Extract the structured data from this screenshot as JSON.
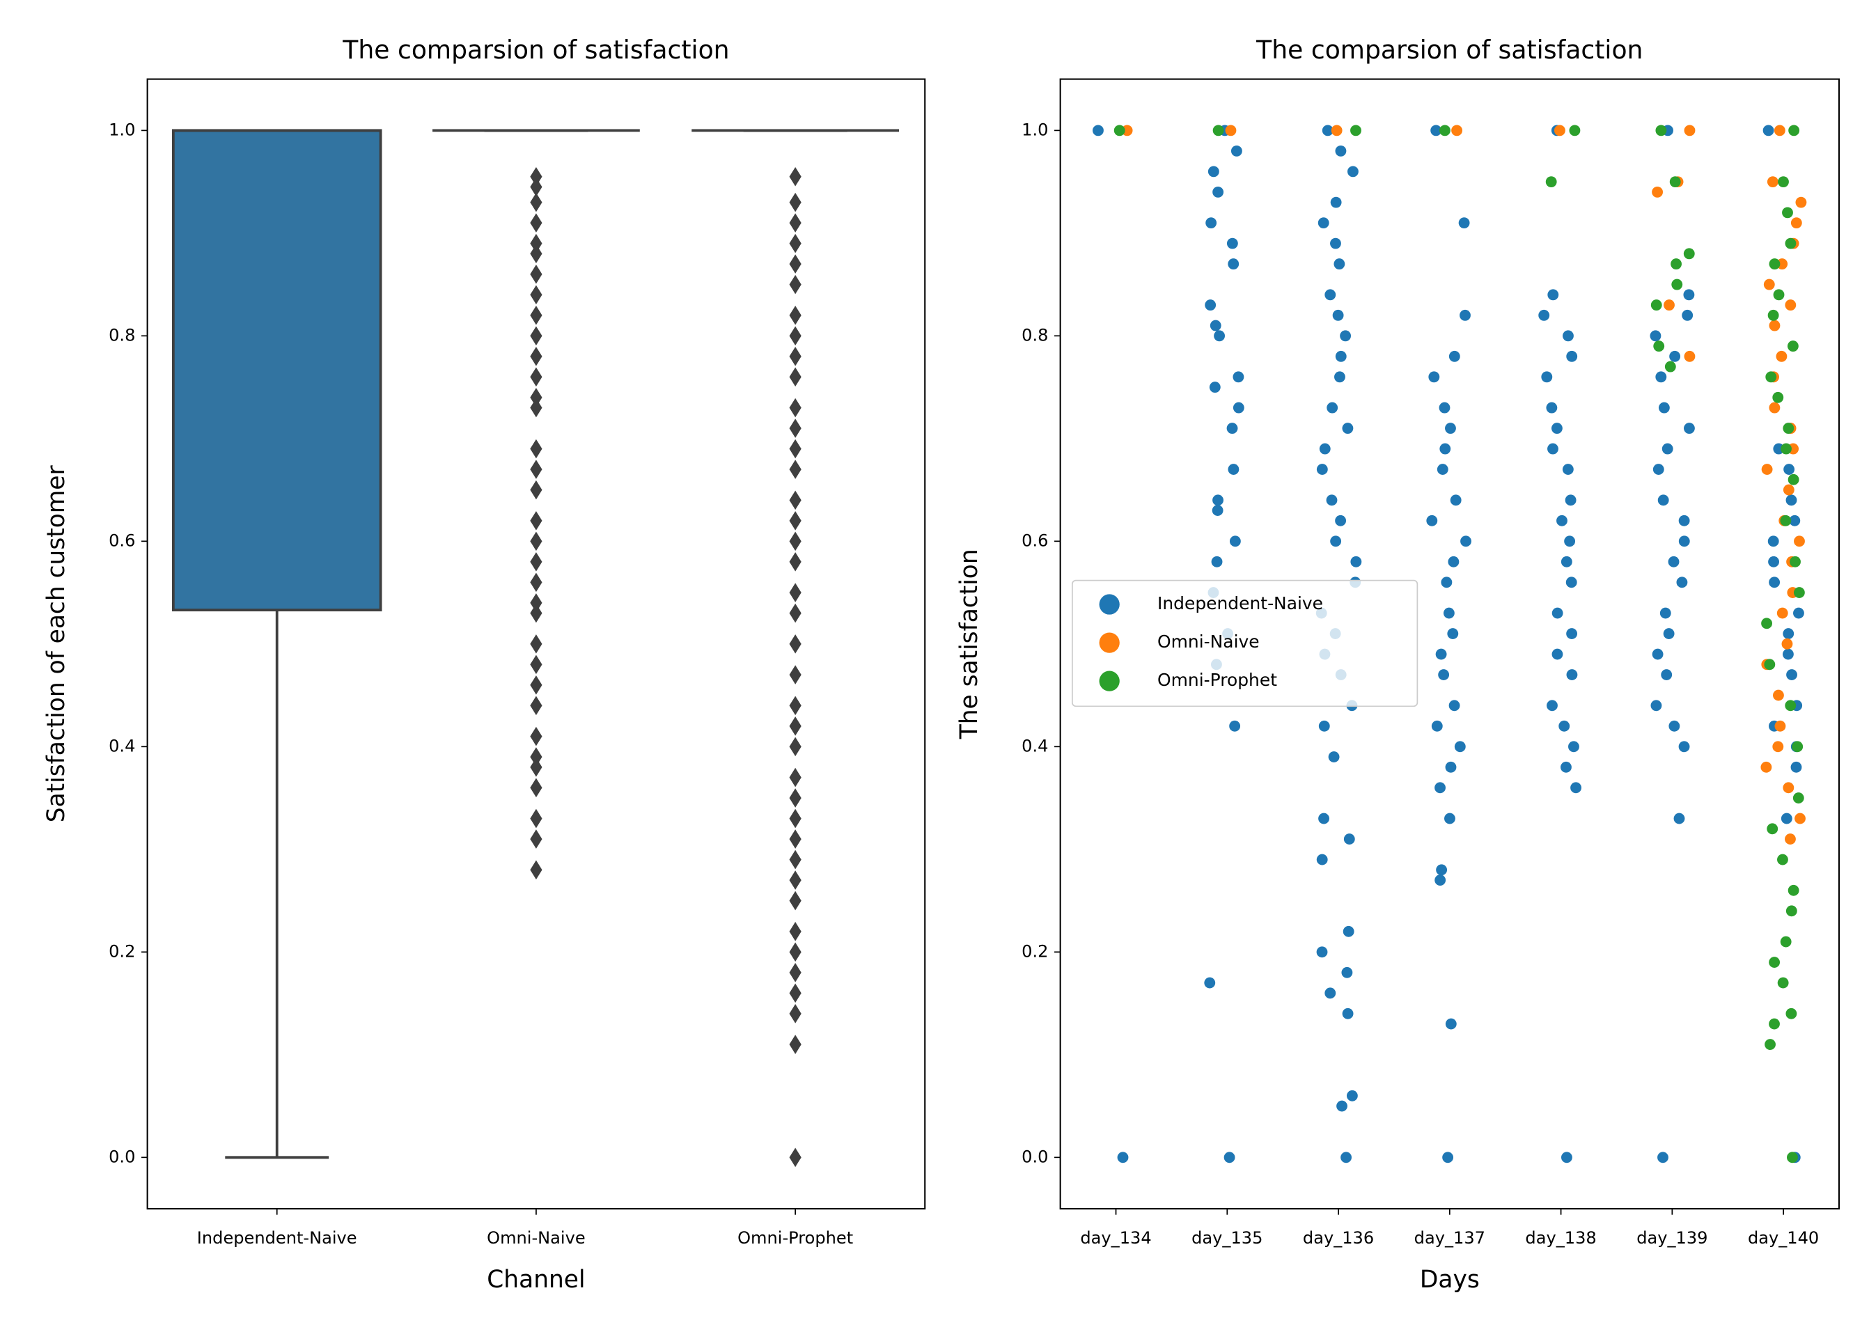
{
  "chart_data": [
    {
      "type": "box",
      "title": "The comparsion of satisfaction",
      "xlabel": "Channel",
      "ylabel": "Satisfaction of each customer",
      "categories": [
        "Independent-Naive",
        "Omni-Naive",
        "Omni-Prophet"
      ],
      "ylim": [
        -0.05,
        1.05
      ],
      "yticks": [
        {
          "value": 0,
          "label": "0.0"
        },
        0.2,
        0.4,
        0.6,
        0.8,
        {
          "value": 1,
          "label": "1.0"
        }
      ],
      "boxes": [
        {
          "color": "#3274a1",
          "whislo": 0,
          "q1": 0.533,
          "med": 1,
          "q3": 1,
          "whishi": 1,
          "fliers": []
        },
        {
          "color": "#e1812c",
          "whislo": 1,
          "q1": 1,
          "med": 1,
          "q3": 1,
          "whishi": 1,
          "fliers": [
            0.955,
            0.945,
            0.93,
            0.91,
            0.89,
            0.88,
            0.86,
            0.84,
            0.82,
            0.8,
            0.78,
            0.76,
            0.74,
            0.73,
            0.69,
            0.67,
            0.65,
            0.62,
            0.6,
            0.58,
            0.56,
            0.54,
            0.53,
            0.5,
            0.48,
            0.46,
            0.44,
            0.41,
            0.39,
            0.38,
            0.36,
            0.33,
            0.31,
            0.28
          ]
        },
        {
          "color": "#3a923a",
          "whislo": 1,
          "q1": 1,
          "med": 1,
          "q3": 1,
          "whishi": 1,
          "fliers": [
            0.955,
            0.93,
            0.91,
            0.89,
            0.87,
            0.85,
            0.82,
            0.8,
            0.78,
            0.76,
            0.73,
            0.71,
            0.69,
            0.67,
            0.64,
            0.62,
            0.6,
            0.58,
            0.55,
            0.53,
            0.5,
            0.47,
            0.44,
            0.42,
            0.4,
            0.37,
            0.35,
            0.33,
            0.31,
            0.29,
            0.27,
            0.25,
            0.22,
            0.2,
            0.18,
            0.16,
            0.14,
            0.11,
            0
          ]
        }
      ]
    },
    {
      "type": "strip",
      "title": "The comparsion of satisfaction",
      "xlabel": "Days",
      "ylabel": "The satisfaction",
      "categories": [
        "day_134",
        "day_135",
        "day_136",
        "day_137",
        "day_138",
        "day_139",
        "day_140"
      ],
      "ylim": [
        -0.05,
        1.05
      ],
      "yticks": [
        {
          "value": 0,
          "label": "0.0"
        },
        0.2,
        0.4,
        0.6,
        0.8,
        {
          "value": 1,
          "label": "1.0"
        }
      ],
      "legend": "center left",
      "series": [
        {
          "name": "Independent-Naive",
          "color": "#1f77b4",
          "values": [
            [
              1,
              0
            ],
            [
              1,
              0.98,
              0.96,
              0.94,
              0.91,
              0.89,
              0.87,
              0.83,
              0.81,
              0.8,
              0.76,
              0.75,
              0.73,
              0.71,
              0.67,
              0.64,
              0.63,
              0.6,
              0.58,
              0.55,
              0.51,
              0.48,
              0.42,
              0.17,
              0
            ],
            [
              1,
              0.98,
              0.96,
              0.93,
              0.91,
              0.89,
              0.87,
              0.84,
              0.82,
              0.8,
              0.78,
              0.76,
              0.73,
              0.71,
              0.69,
              0.67,
              0.64,
              0.62,
              0.6,
              0.58,
              0.56,
              0.53,
              0.51,
              0.49,
              0.47,
              0.44,
              0.42,
              0.39,
              0.33,
              0.31,
              0.29,
              0.22,
              0.2,
              0.18,
              0.16,
              0.14,
              0.06,
              0.05,
              0
            ],
            [
              1,
              0.91,
              0.82,
              0.78,
              0.76,
              0.73,
              0.71,
              0.69,
              0.67,
              0.64,
              0.62,
              0.6,
              0.58,
              0.56,
              0.53,
              0.51,
              0.49,
              0.47,
              0.44,
              0.42,
              0.4,
              0.38,
              0.36,
              0.33,
              0.28,
              0.27,
              0.13,
              0
            ],
            [
              1,
              0.84,
              0.82,
              0.8,
              0.78,
              0.76,
              0.73,
              0.71,
              0.69,
              0.67,
              0.64,
              0.62,
              0.6,
              0.58,
              0.56,
              0.53,
              0.51,
              0.49,
              0.47,
              0.44,
              0.42,
              0.4,
              0.38,
              0.36,
              0
            ],
            [
              1,
              0.84,
              0.82,
              0.8,
              0.78,
              0.76,
              0.73,
              0.71,
              0.69,
              0.67,
              0.64,
              0.62,
              0.6,
              0.58,
              0.56,
              0.53,
              0.51,
              0.49,
              0.47,
              0.44,
              0.42,
              0.4,
              0.33,
              0
            ],
            [
              1,
              0.69,
              0.67,
              0.64,
              0.62,
              0.6,
              0.58,
              0.56,
              0.53,
              0.51,
              0.49,
              0.47,
              0.44,
              0.42,
              0.4,
              0.38,
              0.33,
              0
            ]
          ]
        },
        {
          "name": "Omni-Naive",
          "color": "#ff7f0e",
          "values": [
            [
              1
            ],
            [
              1
            ],
            [
              1
            ],
            [
              1
            ],
            [
              1
            ],
            [
              1,
              0.95,
              0.94,
              0.83,
              0.78
            ],
            [
              1,
              0.95,
              0.93,
              0.91,
              0.89,
              0.87,
              0.85,
              0.83,
              0.81,
              0.78,
              0.76,
              0.73,
              0.71,
              0.69,
              0.67,
              0.65,
              0.62,
              0.6,
              0.58,
              0.55,
              0.53,
              0.5,
              0.48,
              0.45,
              0.42,
              0.4,
              0.38,
              0.36,
              0.33,
              0.31
            ]
          ]
        },
        {
          "name": "Omni-Prophet",
          "color": "#2ca02c",
          "values": [
            [
              1
            ],
            [
              1
            ],
            [
              1
            ],
            [
              1
            ],
            [
              1,
              0.95
            ],
            [
              1,
              0.95,
              0.88,
              0.87,
              0.85,
              0.83,
              0.79,
              0.77
            ],
            [
              1,
              0.95,
              0.92,
              0.89,
              0.87,
              0.84,
              0.82,
              0.79,
              0.76,
              0.74,
              0.71,
              0.69,
              0.66,
              0.62,
              0.58,
              0.55,
              0.52,
              0.48,
              0.44,
              0.4,
              0.35,
              0.32,
              0.29,
              0.26,
              0.24,
              0.21,
              0.19,
              0.17,
              0.14,
              0.13,
              0.11,
              0
            ]
          ]
        }
      ]
    }
  ]
}
